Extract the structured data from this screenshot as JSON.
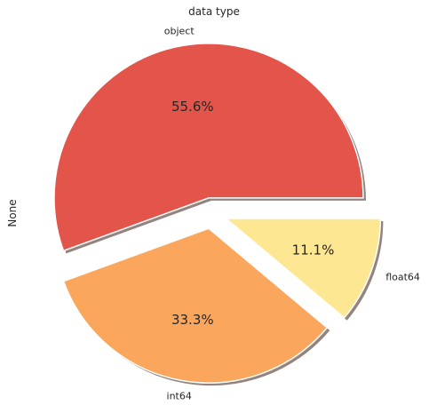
{
  "chart_data": {
    "type": "pie",
    "title": "data type",
    "ylabel": "None",
    "categories": [
      "object",
      "int64",
      "float64"
    ],
    "values": [
      5,
      3,
      1
    ],
    "percent_labels": [
      "55.6%",
      "33.3%",
      "11.1%"
    ],
    "explode": [
      0.1,
      0.1,
      0.1
    ],
    "start_angle_deg": 0,
    "direction": "counterclockwise",
    "shadow": true,
    "colors": [
      "#e3544b",
      "#fba65d",
      "#fee793"
    ]
  }
}
